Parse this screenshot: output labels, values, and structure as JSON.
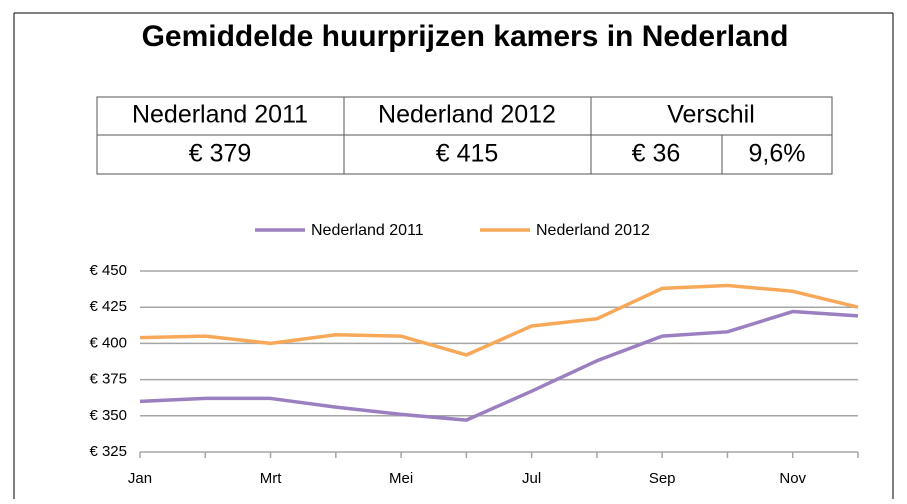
{
  "chart_data": {
    "type": "line",
    "title": "Gemiddelde huurprijzen kamers in Nederland",
    "categories": [
      "Jan",
      null,
      "Mrt",
      null,
      "Mei",
      null,
      "Jul",
      null,
      "Sep",
      null,
      "Nov",
      null
    ],
    "series": [
      {
        "name": "Nederland 2011",
        "color": "#9b7fc0",
        "values": [
          360,
          362,
          362,
          356,
          351,
          347,
          367,
          388,
          405,
          408,
          422,
          419
        ]
      },
      {
        "name": "Nederland 2012",
        "color": "#f7a959",
        "values": [
          404,
          405,
          400,
          406,
          405,
          392,
          412,
          417,
          438,
          440,
          436,
          425
        ]
      }
    ],
    "ylim": [
      325,
      450
    ],
    "yticks": [
      {
        "value": 325,
        "label": "€ 325"
      },
      {
        "value": 350,
        "label": "€ 350"
      },
      {
        "value": 375,
        "label": "€ 375"
      },
      {
        "value": 400,
        "label": "€ 400"
      },
      {
        "value": 425,
        "label": "€ 425"
      },
      {
        "value": 450,
        "label": "€ 450"
      }
    ],
    "grid": true,
    "legend": "top"
  },
  "table": {
    "header": [
      "Nederland 2011",
      "Nederland 2012",
      "Verschil"
    ],
    "row": [
      "€ 379",
      "€ 415",
      "€ 36",
      "9,6%"
    ]
  }
}
